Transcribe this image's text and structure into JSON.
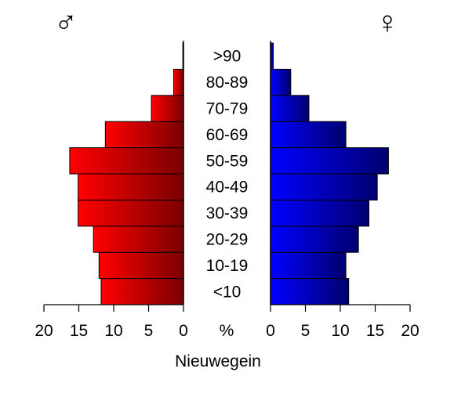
{
  "chart_data": {
    "type": "bar",
    "orientation": "horizontal",
    "layout": "population-pyramid",
    "categories": [
      "<10",
      "10-19",
      "20-29",
      "30-39",
      "40-49",
      "50-59",
      "60-69",
      "70-79",
      "80-89",
      ">90"
    ],
    "series": [
      {
        "side": "left",
        "gradient": [
          "#ff0000",
          "#7a0000"
        ],
        "values": [
          11.8,
          12.1,
          12.9,
          15.1,
          15.1,
          16.3,
          11.2,
          4.6,
          1.4,
          0.1
        ]
      },
      {
        "side": "right",
        "gradient": [
          "#0000ff",
          "#000070"
        ],
        "values": [
          11.2,
          10.8,
          12.6,
          14.1,
          15.3,
          16.9,
          10.8,
          5.5,
          2.9,
          0.4
        ]
      }
    ],
    "symbols": {
      "male": "♂",
      "female": "♀"
    },
    "unit_label": "%",
    "xlabel": "Nieuwegein",
    "xlim": [
      0,
      20
    ],
    "ticks": [
      20,
      15,
      10,
      5,
      0
    ],
    "ticks_right": [
      0,
      5,
      10,
      15,
      20
    ]
  }
}
